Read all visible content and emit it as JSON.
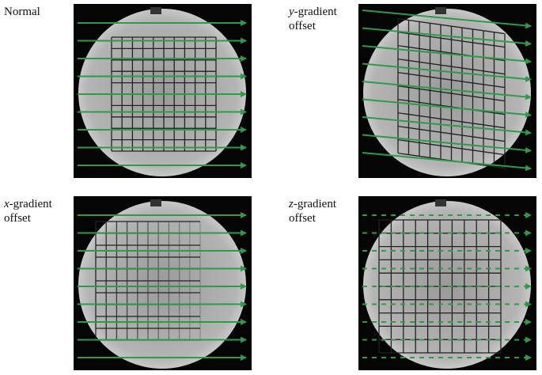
{
  "panels": [
    {
      "label": {
        "text": "Normal"
      }
    },
    {
      "label": {
        "italic": "y",
        "text": "-gradient offset"
      }
    },
    {
      "label": {
        "italic": "x",
        "text": "-gradient offset"
      }
    },
    {
      "label": {
        "italic": "z",
        "text": "-gradient offset"
      }
    }
  ]
}
